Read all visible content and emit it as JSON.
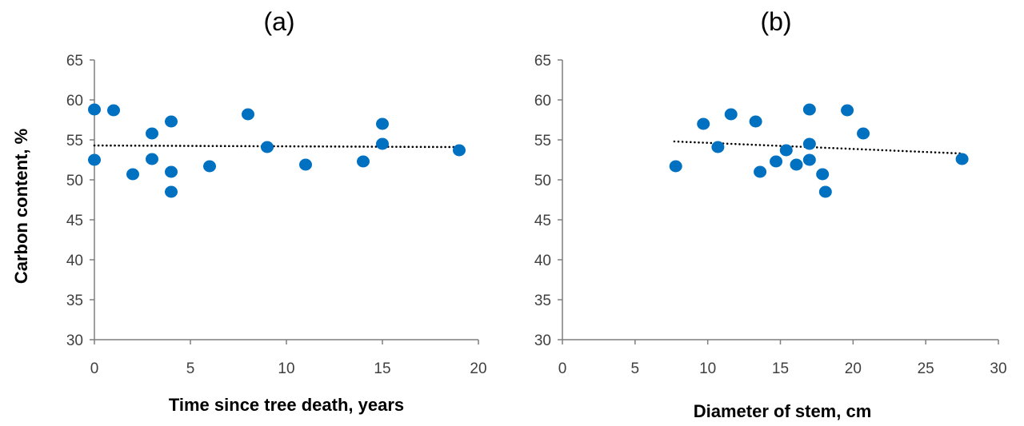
{
  "colors": {
    "point": "#0070C0",
    "axis": "#7f7f7f",
    "trend": "#000000"
  },
  "chart_data": [
    {
      "type": "scatter",
      "title": "(a)",
      "xlabel": "Time since tree death, years",
      "ylabel": "Carbon content, %",
      "xlim": [
        0,
        20
      ],
      "ylim": [
        30,
        65
      ],
      "xticks": [
        "0",
        "5",
        "10",
        "15",
        "20"
      ],
      "yticks": [
        "30",
        "35",
        "40",
        "45",
        "50",
        "55",
        "60",
        "65"
      ],
      "grid": false,
      "trendline": {
        "style": "dotted",
        "from": [
          0,
          54.3
        ],
        "to": [
          19,
          54.1
        ]
      },
      "points": [
        {
          "x": 0,
          "y": 58.8
        },
        {
          "x": 0,
          "y": 52.5
        },
        {
          "x": 1,
          "y": 58.7
        },
        {
          "x": 2,
          "y": 50.7
        },
        {
          "x": 3,
          "y": 55.8
        },
        {
          "x": 3,
          "y": 52.6
        },
        {
          "x": 4,
          "y": 57.3
        },
        {
          "x": 4,
          "y": 51.0
        },
        {
          "x": 4,
          "y": 48.5
        },
        {
          "x": 6,
          "y": 51.7
        },
        {
          "x": 8,
          "y": 58.2
        },
        {
          "x": 9,
          "y": 54.1
        },
        {
          "x": 11,
          "y": 51.9
        },
        {
          "x": 14,
          "y": 52.3
        },
        {
          "x": 15,
          "y": 57.0
        },
        {
          "x": 15,
          "y": 54.5
        },
        {
          "x": 19,
          "y": 53.7
        }
      ]
    },
    {
      "type": "scatter",
      "title": "(b)",
      "xlabel": "Diameter of stem, cm",
      "ylabel": "",
      "xlim": [
        0,
        30
      ],
      "ylim": [
        30,
        65
      ],
      "xticks": [
        "0",
        "5",
        "10",
        "15",
        "20",
        "25",
        "30"
      ],
      "yticks": [
        "30",
        "35",
        "40",
        "45",
        "50",
        "55",
        "60",
        "65"
      ],
      "grid": false,
      "trendline": {
        "style": "dotted",
        "from": [
          7.7,
          54.8
        ],
        "to": [
          27.4,
          53.3
        ]
      },
      "points": [
        {
          "x": 7.8,
          "y": 51.7
        },
        {
          "x": 9.7,
          "y": 57.0
        },
        {
          "x": 10.7,
          "y": 54.1
        },
        {
          "x": 11.6,
          "y": 58.2
        },
        {
          "x": 13.3,
          "y": 57.3
        },
        {
          "x": 13.6,
          "y": 51.0
        },
        {
          "x": 14.7,
          "y": 52.3
        },
        {
          "x": 15.4,
          "y": 53.7
        },
        {
          "x": 16.1,
          "y": 51.9
        },
        {
          "x": 17.0,
          "y": 58.8
        },
        {
          "x": 17.0,
          "y": 54.5
        },
        {
          "x": 17.0,
          "y": 52.5
        },
        {
          "x": 17.9,
          "y": 50.7
        },
        {
          "x": 18.1,
          "y": 48.5
        },
        {
          "x": 19.6,
          "y": 58.7
        },
        {
          "x": 20.7,
          "y": 55.8
        },
        {
          "x": 27.5,
          "y": 52.6
        }
      ]
    }
  ]
}
